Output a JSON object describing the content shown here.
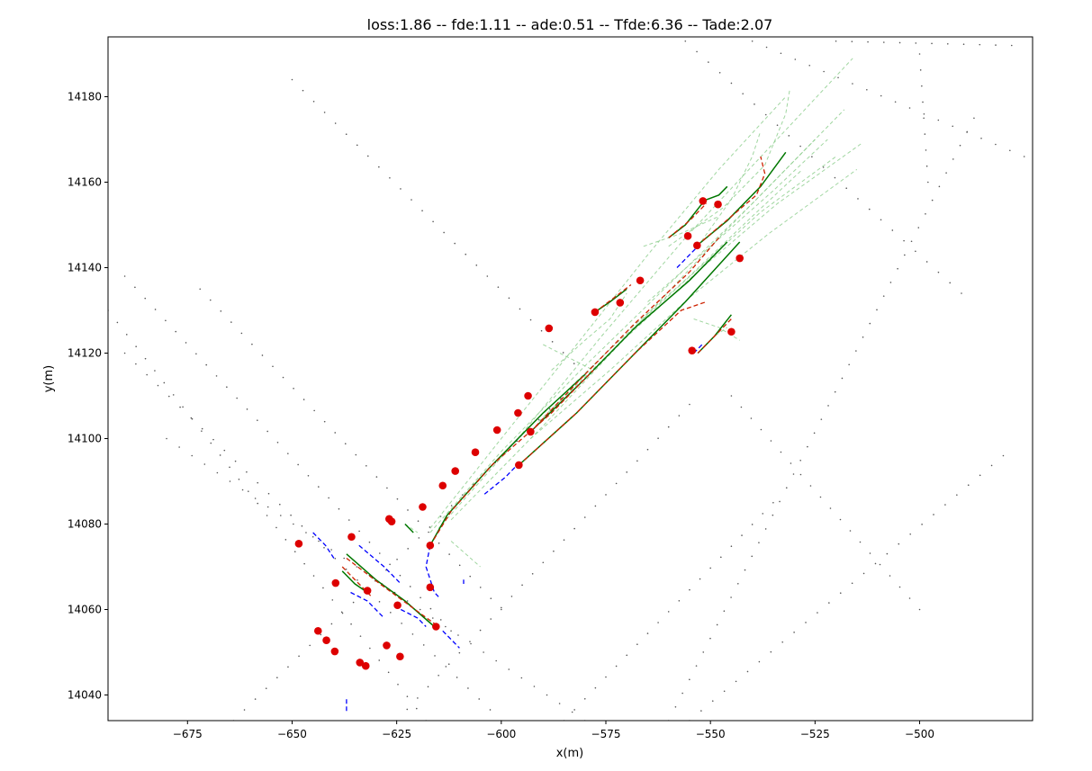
{
  "chart_data": {
    "type": "scatter",
    "title": "loss:1.86 -- fde:1.11 -- ade:0.51 -- Tfde:6.36 -- Tade:2.07",
    "xlabel": "x(m)",
    "ylabel": "y(m)",
    "xlim": [
      -694,
      -473
    ],
    "ylim": [
      14034,
      14194
    ],
    "xticks": [
      -675,
      -650,
      -625,
      -600,
      -575,
      -550,
      -525,
      -500
    ],
    "yticks": [
      14040,
      14060,
      14080,
      14100,
      14120,
      14140,
      14160,
      14180
    ],
    "grid": false,
    "legend": "none",
    "colors": {
      "agents": "#dd0000",
      "history": "#0000ff",
      "ground_truth": "#007700",
      "prediction": "#cc2200",
      "candidate": "#88cc88",
      "map": "#555555"
    },
    "agents": [
      [
        -648.4,
        14075.4
      ],
      [
        -635.8,
        14077.0
      ],
      [
        -639.6,
        14066.2
      ],
      [
        -632.0,
        14064.4
      ],
      [
        -626.8,
        14081.2
      ],
      [
        -626.2,
        14080.6
      ],
      [
        -624.8,
        14061.0
      ],
      [
        -618.8,
        14084.0
      ],
      [
        -617.0,
        14075.0
      ],
      [
        -617.0,
        14065.2
      ],
      [
        -615.6,
        14056.0
      ],
      [
        -643.8,
        14055.0
      ],
      [
        -641.8,
        14052.8
      ],
      [
        -639.8,
        14050.2
      ],
      [
        -627.4,
        14051.6
      ],
      [
        -624.2,
        14049.0
      ],
      [
        -633.8,
        14047.6
      ],
      [
        -632.4,
        14046.8
      ],
      [
        -614.0,
        14089.0
      ],
      [
        -611.0,
        14092.4
      ],
      [
        -606.2,
        14096.8
      ],
      [
        -601.0,
        14102.0
      ],
      [
        -596.0,
        14106.0
      ],
      [
        -593.6,
        14110.0
      ],
      [
        -593.0,
        14101.6
      ],
      [
        -595.8,
        14093.8
      ],
      [
        -588.6,
        14125.8
      ],
      [
        -577.6,
        14129.6
      ],
      [
        -571.6,
        14131.8
      ],
      [
        -566.8,
        14137.0
      ],
      [
        -555.4,
        14147.4
      ],
      [
        -553.2,
        14145.2
      ],
      [
        -551.8,
        14155.6
      ],
      [
        -548.2,
        14154.8
      ],
      [
        -543.0,
        14142.2
      ],
      [
        -545.0,
        14125.0
      ],
      [
        -554.4,
        14120.6
      ]
    ],
    "ground_truth": [
      [
        [
          -617.0,
          14075.0
        ],
        [
          -613.0,
          14082.0
        ],
        [
          -603.0,
          14093.0
        ],
        [
          -590.0,
          14106.0
        ],
        [
          -580.0,
          14115.0
        ]
      ],
      [
        [
          -593.0,
          14101.6
        ],
        [
          -580.0,
          14114.0
        ],
        [
          -568.0,
          14126.0
        ],
        [
          -555.0,
          14137.0
        ],
        [
          -546.0,
          14146.0
        ]
      ],
      [
        [
          -595.8,
          14093.8
        ],
        [
          -582.0,
          14106.0
        ],
        [
          -570.0,
          14118.0
        ],
        [
          -556.0,
          14132.0
        ],
        [
          -543.0,
          14146.0
        ]
      ],
      [
        [
          -553.2,
          14145.2
        ],
        [
          -546.0,
          14151.0
        ],
        [
          -538.0,
          14159.0
        ],
        [
          -532.0,
          14167.0
        ]
      ],
      [
        [
          -560.0,
          14147.0
        ],
        [
          -556.0,
          14150.0
        ],
        [
          -552.0,
          14155.0
        ]
      ],
      [
        [
          -551.8,
          14155.6
        ],
        [
          -548.0,
          14157.0
        ],
        [
          -546.0,
          14159.0
        ]
      ],
      [
        [
          -577.6,
          14129.6
        ],
        [
          -574.0,
          14132.0
        ],
        [
          -570.0,
          14135.0
        ]
      ],
      [
        [
          -553.0,
          14120.0
        ],
        [
          -549.0,
          14124.0
        ],
        [
          -545.0,
          14129.0
        ]
      ],
      [
        [
          -637.0,
          14073.0
        ],
        [
          -630.0,
          14067.0
        ],
        [
          -623.0,
          14062.0
        ],
        [
          -616.0,
          14056.0
        ]
      ],
      [
        [
          -638.0,
          14069.0
        ],
        [
          -635.0,
          14066.0
        ],
        [
          -632.0,
          14064.0
        ]
      ],
      [
        [
          -623.0,
          14080.0
        ],
        [
          -621.0,
          14078.0
        ]
      ]
    ],
    "history": [
      [
        [
          -645.0,
          14078.0
        ],
        [
          -642.0,
          14075.0
        ],
        [
          -640.0,
          14072.0
        ]
      ],
      [
        [
          -634.0,
          14075.0
        ],
        [
          -628.0,
          14070.0
        ],
        [
          -624.0,
          14066.0
        ]
      ],
      [
        [
          -636.0,
          14064.0
        ],
        [
          -632.0,
          14062.0
        ],
        [
          -628.0,
          14058.0
        ]
      ],
      [
        [
          -624.0,
          14060.0
        ],
        [
          -620.0,
          14058.0
        ],
        [
          -618.0,
          14056.0
        ]
      ],
      [
        [
          -617.0,
          14075.0
        ],
        [
          -618.0,
          14070.0
        ],
        [
          -616.0,
          14064.0
        ],
        [
          -615.0,
          14063.0
        ]
      ],
      [
        [
          -614.0,
          14055.0
        ],
        [
          -612.0,
          14053.0
        ],
        [
          -610.0,
          14051.0
        ]
      ],
      [
        [
          -604.0,
          14087.0
        ],
        [
          -599.0,
          14091.0
        ],
        [
          -596.0,
          14094.0
        ]
      ],
      [
        [
          -598.0,
          14098.0
        ],
        [
          -595.0,
          14101.0
        ]
      ],
      [
        [
          -558.0,
          14140.0
        ],
        [
          -555.0,
          14143.0
        ],
        [
          -553.0,
          14145.0
        ]
      ],
      [
        [
          -554.0,
          14120.0
        ],
        [
          -552.0,
          14122.0
        ]
      ],
      [
        [
          -637.0,
          14039.0
        ],
        [
          -637.0,
          14036.0
        ]
      ],
      [
        [
          -609.0,
          14067.0
        ],
        [
          -609.0,
          14066.0
        ]
      ]
    ],
    "prediction": [
      [
        [
          -617.0,
          14075.0
        ],
        [
          -612.0,
          14083.0
        ],
        [
          -602.0,
          14094.0
        ],
        [
          -588.0,
          14106.0
        ],
        [
          -578.0,
          14116.0
        ]
      ],
      [
        [
          -593.0,
          14101.6
        ],
        [
          -581.0,
          14114.0
        ],
        [
          -568.0,
          14127.0
        ],
        [
          -555.0,
          14139.0
        ],
        [
          -548.0,
          14147.0
        ]
      ],
      [
        [
          -595.8,
          14093.8
        ],
        [
          -582.0,
          14106.0
        ],
        [
          -568.0,
          14120.0
        ],
        [
          -557.0,
          14130.0
        ],
        [
          -551.0,
          14132.0
        ]
      ],
      [
        [
          -553.2,
          14145.2
        ],
        [
          -545.0,
          14152.0
        ],
        [
          -539.0,
          14157.0
        ],
        [
          -537.0,
          14162.0
        ],
        [
          -538.0,
          14166.0
        ]
      ],
      [
        [
          -560.0,
          14147.0
        ],
        [
          -555.0,
          14151.0
        ],
        [
          -551.0,
          14155.0
        ]
      ],
      [
        [
          -577.6,
          14129.6
        ],
        [
          -573.0,
          14133.0
        ],
        [
          -569.0,
          14136.0
        ]
      ],
      [
        [
          -553.0,
          14120.0
        ],
        [
          -548.0,
          14125.0
        ],
        [
          -545.0,
          14128.0
        ]
      ],
      [
        [
          -637.0,
          14072.0
        ],
        [
          -629.0,
          14066.0
        ],
        [
          -622.0,
          14061.0
        ],
        [
          -615.0,
          14056.0
        ]
      ],
      [
        [
          -638.0,
          14070.0
        ],
        [
          -634.0,
          14066.0
        ],
        [
          -631.0,
          14063.0
        ]
      ]
    ],
    "candidates": [
      [
        [
          -617.0,
          14078.0
        ],
        [
          -600.0,
          14097.0
        ],
        [
          -580.0,
          14117.0
        ],
        [
          -560.0,
          14136.0
        ],
        [
          -540.0,
          14155.0
        ],
        [
          -525.0,
          14170.0
        ]
      ],
      [
        [
          -617.0,
          14079.0
        ],
        [
          -600.0,
          14100.0
        ],
        [
          -582.0,
          14122.0
        ],
        [
          -565.0,
          14143.0
        ],
        [
          -548.0,
          14163.0
        ],
        [
          -532.0,
          14180.0
        ]
      ],
      [
        [
          -615.0,
          14079.0
        ],
        [
          -596.0,
          14100.0
        ],
        [
          -576.0,
          14124.0
        ],
        [
          -556.0,
          14147.0
        ],
        [
          -536.0,
          14168.0
        ],
        [
          -516.0,
          14189.0
        ]
      ],
      [
        [
          -612.0,
          14081.0
        ],
        [
          -590.0,
          14103.0
        ],
        [
          -568.0,
          14126.0
        ],
        [
          -548.0,
          14147.0
        ],
        [
          -530.0,
          14165.0
        ],
        [
          -518.0,
          14177.0
        ]
      ],
      [
        [
          -593.0,
          14103.0
        ],
        [
          -575.0,
          14120.0
        ],
        [
          -556.0,
          14137.0
        ],
        [
          -538.0,
          14153.0
        ],
        [
          -520.0,
          14166.0
        ]
      ],
      [
        [
          -591.0,
          14104.0
        ],
        [
          -572.0,
          14122.0
        ],
        [
          -552.0,
          14140.0
        ],
        [
          -534.0,
          14155.0
        ],
        [
          -514.0,
          14169.0
        ]
      ],
      [
        [
          -593.0,
          14100.0
        ],
        [
          -574.0,
          14116.0
        ],
        [
          -555.0,
          14133.0
        ],
        [
          -536.0,
          14148.0
        ],
        [
          -515.0,
          14163.0
        ]
      ],
      [
        [
          -570.0,
          14125.0
        ],
        [
          -555.0,
          14138.0
        ],
        [
          -540.0,
          14152.0
        ],
        [
          -528.0,
          14163.0
        ]
      ],
      [
        [
          -565.0,
          14132.0
        ],
        [
          -550.0,
          14145.0
        ],
        [
          -535.0,
          14158.0
        ],
        [
          -522.0,
          14170.0
        ]
      ],
      [
        [
          -560.0,
          14145.0
        ],
        [
          -547.0,
          14154.0
        ],
        [
          -537.0,
          14164.0
        ],
        [
          -532.0,
          14176.0
        ],
        [
          -531.0,
          14182.0
        ]
      ],
      [
        [
          -553.0,
          14145.0
        ],
        [
          -545.0,
          14156.0
        ],
        [
          -540.0,
          14166.0
        ],
        [
          -538.0,
          14172.0
        ]
      ],
      [
        [
          -566.0,
          14145.0
        ],
        [
          -557.0,
          14148.0
        ],
        [
          -548.0,
          14152.0
        ]
      ],
      [
        [
          -588.0,
          14116.0
        ],
        [
          -580.0,
          14123.0
        ],
        [
          -574.0,
          14128.0
        ],
        [
          -570.0,
          14134.0
        ]
      ],
      [
        [
          -590.0,
          14122.0
        ],
        [
          -584.0,
          14119.0
        ],
        [
          -578.0,
          14116.0
        ]
      ],
      [
        [
          -554.0,
          14128.0
        ],
        [
          -548.0,
          14126.0
        ],
        [
          -543.0,
          14123.0
        ]
      ],
      [
        [
          -553.0,
          14120.0
        ],
        [
          -549.0,
          14124.0
        ],
        [
          -546.0,
          14126.0
        ]
      ],
      [
        [
          -623.0,
          14080.0
        ],
        [
          -620.0,
          14078.0
        ]
      ],
      [
        [
          -612.0,
          14076.0
        ],
        [
          -605.0,
          14070.0
        ]
      ]
    ],
    "lane_points": [
      [
        [
          -650.0,
          14184.0
        ],
        [
          -580.0,
          14115.0
        ]
      ],
      [
        [
          -664.0,
          14034.0
        ],
        [
          -578.0,
          14117.0
        ]
      ],
      [
        [
          -625.0,
          14034.0
        ],
        [
          -555.0,
          14108.0
        ]
      ],
      [
        [
          -585.0,
          14034.0
        ],
        [
          -535.0,
          14085.0
        ]
      ],
      [
        [
          -560.0,
          14034.0
        ],
        [
          -487.0,
          14175.0
        ]
      ],
      [
        [
          -555.0,
          14034.0
        ],
        [
          -480.0,
          14096.0
        ]
      ],
      [
        [
          -694.0,
          14130.0
        ],
        [
          -618.0,
          14034.0
        ]
      ],
      [
        [
          -690.0,
          14120.0
        ],
        [
          -600.0,
          14034.0
        ]
      ],
      [
        [
          -680.0,
          14100.0
        ],
        [
          -580.0,
          14034.0
        ]
      ],
      [
        [
          -672.0,
          14135.0
        ],
        [
          -600.0,
          14060.0
        ]
      ],
      [
        [
          -690.0,
          14138.0
        ],
        [
          -612.0,
          14055.0
        ]
      ],
      [
        [
          -556.0,
          14193.0
        ],
        [
          -490.0,
          14134.0
        ]
      ],
      [
        [
          -540.0,
          14193.0
        ],
        [
          -475.0,
          14166.0
        ]
      ],
      [
        [
          -520.0,
          14193.0
        ],
        [
          -478.0,
          14192.0
        ]
      ],
      [
        [
          -500.0,
          14190.0
        ],
        [
          -498.0,
          14160.0
        ]
      ],
      [
        [
          -545.0,
          14110.0
        ],
        [
          -500.0,
          14060.0
        ]
      ]
    ]
  }
}
